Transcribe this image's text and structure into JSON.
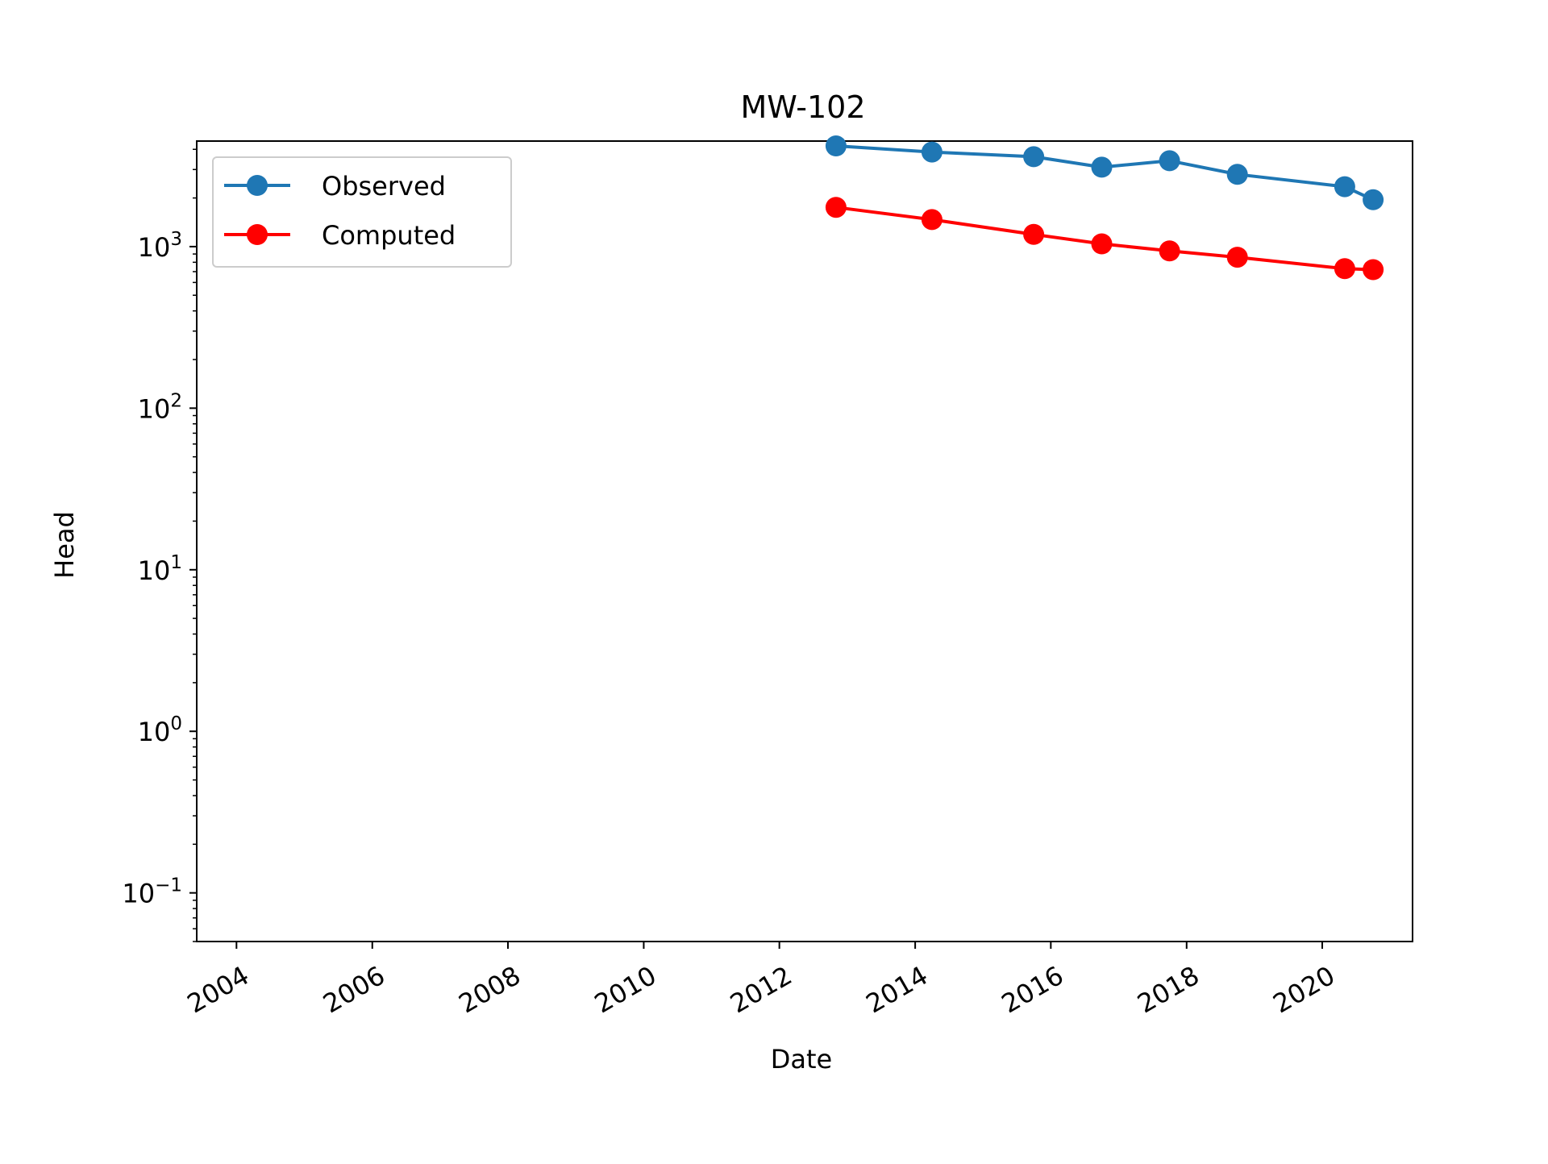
{
  "chart_data": {
    "type": "line",
    "title": "MW-102",
    "xlabel": "Date",
    "ylabel": "Head",
    "y_scale": "log",
    "x_axis_type": "date",
    "xlim": [
      "2003-06-01",
      "2021-05-01"
    ],
    "ylim": [
      0.05,
      4500
    ],
    "x_ticks": [
      "2004",
      "2006",
      "2008",
      "2010",
      "2012",
      "2014",
      "2016",
      "2018",
      "2020"
    ],
    "y_ticks": [
      {
        "value": 0.1,
        "base": "10",
        "exp": "−1"
      },
      {
        "value": 1,
        "base": "10",
        "exp": "0"
      },
      {
        "value": 10,
        "base": "10",
        "exp": "1"
      },
      {
        "value": 100,
        "base": "10",
        "exp": "2"
      },
      {
        "value": 1000,
        "base": "10",
        "exp": "3"
      }
    ],
    "grid": false,
    "legend_position": "top-left",
    "series": [
      {
        "name": "Observed",
        "color": "#1f77b4",
        "marker": "circle",
        "x": [
          "2012-11-01",
          "2014-04-01",
          "2015-10-01",
          "2016-10-01",
          "2017-10-01",
          "2018-10-01",
          "2020-05-01",
          "2020-10-01"
        ],
        "values": [
          4200,
          3850,
          3600,
          3100,
          3400,
          2800,
          2350,
          1950
        ]
      },
      {
        "name": "Computed",
        "color": "#ff0000",
        "marker": "circle",
        "x": [
          "2012-11-01",
          "2014-04-01",
          "2015-10-01",
          "2016-10-01",
          "2017-10-01",
          "2018-10-01",
          "2020-05-01",
          "2020-10-01"
        ],
        "values": [
          1750,
          1470,
          1190,
          1040,
          940,
          860,
          730,
          720
        ]
      }
    ]
  }
}
